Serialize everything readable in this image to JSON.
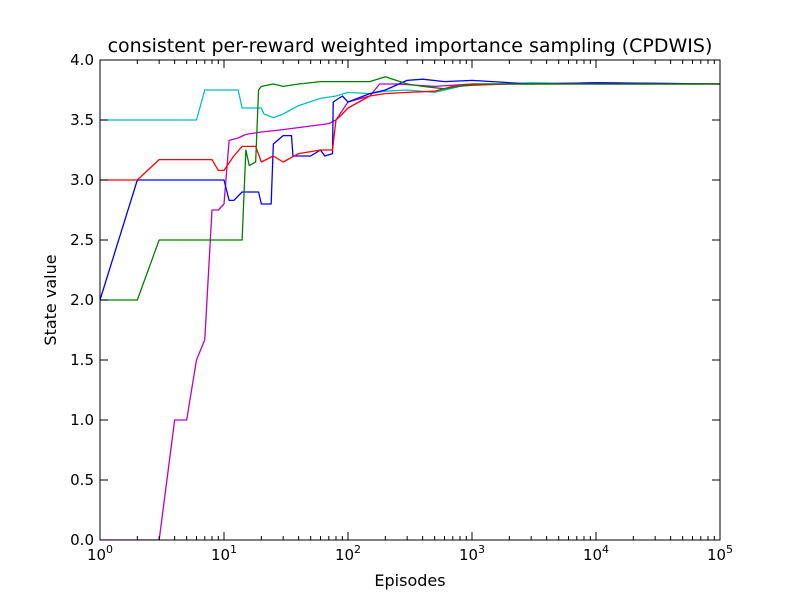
{
  "chart_data": {
    "type": "line",
    "title": "consistent per-reward weighted importance sampling (CPDWIS)",
    "xlabel": "Episodes",
    "ylabel": "State value",
    "xscale": "log",
    "xlim": [
      1,
      100000
    ],
    "ylim": [
      0.0,
      4.0
    ],
    "grid": false,
    "legend": "none",
    "xticks": [
      {
        "value": 1,
        "base": "10",
        "exp": "0"
      },
      {
        "value": 10,
        "base": "10",
        "exp": "1"
      },
      {
        "value": 100,
        "base": "10",
        "exp": "2"
      },
      {
        "value": 1000,
        "base": "10",
        "exp": "3"
      },
      {
        "value": 10000,
        "base": "10",
        "exp": "4"
      },
      {
        "value": 100000,
        "base": "10",
        "exp": "5"
      }
    ],
    "yticks": [
      {
        "value": 0.0,
        "label": "0.0"
      },
      {
        "value": 0.5,
        "label": "0.5"
      },
      {
        "value": 1.0,
        "label": "1.0"
      },
      {
        "value": 1.5,
        "label": "1.5"
      },
      {
        "value": 2.0,
        "label": "2.0"
      },
      {
        "value": 2.5,
        "label": "2.5"
      },
      {
        "value": 3.0,
        "label": "3.0"
      },
      {
        "value": 3.5,
        "label": "3.5"
      },
      {
        "value": 4.0,
        "label": "4.0"
      }
    ],
    "series": [
      {
        "color": "#00bfbf",
        "points": [
          [
            1,
            3.5
          ],
          [
            6,
            3.5
          ],
          [
            7,
            3.75
          ],
          [
            13,
            3.75
          ],
          [
            14,
            3.6
          ],
          [
            20,
            3.6
          ],
          [
            21,
            3.55
          ],
          [
            25,
            3.52
          ],
          [
            30,
            3.55
          ],
          [
            40,
            3.62
          ],
          [
            60,
            3.68
          ],
          [
            80,
            3.7
          ],
          [
            100,
            3.73
          ],
          [
            150,
            3.72
          ],
          [
            200,
            3.74
          ],
          [
            300,
            3.75
          ],
          [
            500,
            3.73
          ],
          [
            800,
            3.78
          ],
          [
            1000,
            3.79
          ],
          [
            3000,
            3.81
          ],
          [
            10000,
            3.8
          ],
          [
            100000,
            3.8
          ]
        ]
      },
      {
        "color": "#bf00bf",
        "points": [
          [
            1,
            0
          ],
          [
            3,
            0
          ],
          [
            4,
            1.0
          ],
          [
            5,
            1.0
          ],
          [
            6,
            1.5
          ],
          [
            7,
            1.67
          ],
          [
            8,
            2.75
          ],
          [
            9,
            2.75
          ],
          [
            10,
            2.8
          ],
          [
            11,
            3.33
          ],
          [
            13,
            3.35
          ],
          [
            15,
            3.38
          ],
          [
            20,
            3.4
          ],
          [
            30,
            3.42
          ],
          [
            50,
            3.45
          ],
          [
            70,
            3.47
          ],
          [
            80,
            3.5
          ],
          [
            100,
            3.65
          ],
          [
            150,
            3.7
          ],
          [
            180,
            3.8
          ],
          [
            250,
            3.8
          ],
          [
            500,
            3.78
          ],
          [
            1000,
            3.8
          ],
          [
            3000,
            3.8
          ],
          [
            10000,
            3.81
          ],
          [
            100000,
            3.8
          ]
        ]
      },
      {
        "color": "#0000ff",
        "points": [
          [
            1,
            2.0
          ],
          [
            2,
            3.0
          ],
          [
            10,
            3.0
          ],
          [
            11,
            2.83
          ],
          [
            12,
            2.83
          ],
          [
            14,
            2.9
          ],
          [
            19,
            2.9
          ],
          [
            20,
            2.8
          ],
          [
            24,
            2.8
          ],
          [
            25,
            3.3
          ],
          [
            30,
            3.37
          ],
          [
            35,
            3.37
          ],
          [
            36,
            3.2
          ],
          [
            50,
            3.2
          ],
          [
            60,
            3.25
          ],
          [
            65,
            3.2
          ],
          [
            75,
            3.22
          ],
          [
            76,
            3.65
          ],
          [
            90,
            3.7
          ],
          [
            100,
            3.65
          ],
          [
            150,
            3.72
          ],
          [
            200,
            3.75
          ],
          [
            300,
            3.83
          ],
          [
            400,
            3.84
          ],
          [
            600,
            3.82
          ],
          [
            1000,
            3.83
          ],
          [
            3000,
            3.8
          ],
          [
            10000,
            3.81
          ],
          [
            100000,
            3.8
          ]
        ]
      },
      {
        "color": "#ff0000",
        "points": [
          [
            1,
            3.0
          ],
          [
            2,
            3.0
          ],
          [
            3,
            3.17
          ],
          [
            8,
            3.17
          ],
          [
            9,
            3.08
          ],
          [
            10,
            3.08
          ],
          [
            12,
            3.2
          ],
          [
            14,
            3.28
          ],
          [
            18,
            3.28
          ],
          [
            20,
            3.15
          ],
          [
            25,
            3.2
          ],
          [
            30,
            3.15
          ],
          [
            40,
            3.22
          ],
          [
            60,
            3.25
          ],
          [
            75,
            3.25
          ],
          [
            80,
            3.5
          ],
          [
            90,
            3.55
          ],
          [
            100,
            3.6
          ],
          [
            150,
            3.7
          ],
          [
            200,
            3.72
          ],
          [
            300,
            3.73
          ],
          [
            500,
            3.74
          ],
          [
            700,
            3.78
          ],
          [
            1000,
            3.79
          ],
          [
            2000,
            3.8
          ],
          [
            10000,
            3.8
          ],
          [
            100000,
            3.8
          ]
        ]
      },
      {
        "color": "#008000",
        "points": [
          [
            1,
            2.0
          ],
          [
            2,
            2.0
          ],
          [
            3,
            2.5
          ],
          [
            14,
            2.5
          ],
          [
            15,
            3.25
          ],
          [
            16,
            3.12
          ],
          [
            18,
            3.15
          ],
          [
            19,
            3.75
          ],
          [
            20,
            3.78
          ],
          [
            25,
            3.8
          ],
          [
            30,
            3.78
          ],
          [
            40,
            3.8
          ],
          [
            60,
            3.82
          ],
          [
            100,
            3.82
          ],
          [
            150,
            3.82
          ],
          [
            200,
            3.86
          ],
          [
            300,
            3.8
          ],
          [
            400,
            3.78
          ],
          [
            600,
            3.76
          ],
          [
            1000,
            3.8
          ],
          [
            3000,
            3.8
          ],
          [
            10000,
            3.8
          ],
          [
            100000,
            3.8
          ]
        ]
      }
    ]
  }
}
